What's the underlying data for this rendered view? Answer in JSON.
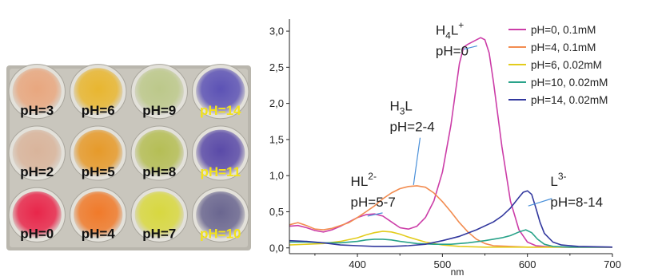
{
  "photo": {
    "cells": [
      {
        "label": "pH=3",
        "color": "#e8a77f",
        "label_color": "#111111"
      },
      {
        "label": "pH=6",
        "color": "#e8b630",
        "label_color": "#111111"
      },
      {
        "label": "pH=9",
        "color": "#bcc88a",
        "label_color": "#111111"
      },
      {
        "label": "pH=14",
        "color": "#5c52b5",
        "label_color": "#f2e21c"
      },
      {
        "label": "pH=2",
        "color": "#d9b49b",
        "label_color": "#111111"
      },
      {
        "label": "pH=5",
        "color": "#e69a2a",
        "label_color": "#111111"
      },
      {
        "label": "pH=8",
        "color": "#b5be55",
        "label_color": "#111111"
      },
      {
        "label": "pH=11",
        "color": "#5a4aa8",
        "label_color": "#f2e21c"
      },
      {
        "label": "pH=0",
        "color": "#e8264a",
        "label_color": "#111111"
      },
      {
        "label": "pH=4",
        "color": "#f07a2a",
        "label_color": "#111111"
      },
      {
        "label": "pH=7",
        "color": "#d8d840",
        "label_color": "#111111"
      },
      {
        "label": "pH=10",
        "color": "#6a6690",
        "label_color": "#f2e21c"
      }
    ]
  },
  "chart_data": {
    "type": "line",
    "xlabel": "nm",
    "ylabel": "",
    "xlim": [
      320,
      700
    ],
    "ylim": [
      -0.08,
      3.1
    ],
    "x_ticks": [
      400,
      500,
      600,
      700
    ],
    "y_ticks": [
      {
        "value": 0.0,
        "label": "0,0"
      },
      {
        "value": 0.5,
        "label": "0,5"
      },
      {
        "value": 1.0,
        "label": "1,0"
      },
      {
        "value": 1.5,
        "label": "1,5"
      },
      {
        "value": 2.0,
        "label": "2,0"
      },
      {
        "value": 2.5,
        "label": "2,5"
      },
      {
        "value": 3.0,
        "label": "3,0"
      }
    ],
    "legend_position": "top-right",
    "series": [
      {
        "name": "pH=0, 0.1mM",
        "color": "#cc3ea8",
        "points": [
          [
            320,
            0.3
          ],
          [
            330,
            0.31
          ],
          [
            340,
            0.28
          ],
          [
            350,
            0.24
          ],
          [
            360,
            0.22
          ],
          [
            370,
            0.25
          ],
          [
            380,
            0.3
          ],
          [
            390,
            0.36
          ],
          [
            400,
            0.42
          ],
          [
            410,
            0.46
          ],
          [
            420,
            0.47
          ],
          [
            430,
            0.44
          ],
          [
            440,
            0.36
          ],
          [
            450,
            0.28
          ],
          [
            460,
            0.26
          ],
          [
            470,
            0.3
          ],
          [
            480,
            0.42
          ],
          [
            490,
            0.65
          ],
          [
            500,
            1.05
          ],
          [
            510,
            1.7
          ],
          [
            520,
            2.55
          ],
          [
            525,
            2.78
          ],
          [
            530,
            2.82
          ],
          [
            540,
            2.88
          ],
          [
            545,
            2.91
          ],
          [
            550,
            2.88
          ],
          [
            555,
            2.7
          ],
          [
            560,
            2.3
          ],
          [
            570,
            1.4
          ],
          [
            580,
            0.65
          ],
          [
            590,
            0.25
          ],
          [
            600,
            0.08
          ],
          [
            610,
            0.03
          ],
          [
            620,
            0.02
          ],
          [
            640,
            0.01
          ],
          [
            660,
            0.01
          ],
          [
            700,
            0.01
          ]
        ]
      },
      {
        "name": "pH=4, 0.1mM",
        "color": "#f28c50",
        "points": [
          [
            320,
            0.32
          ],
          [
            330,
            0.35
          ],
          [
            340,
            0.31
          ],
          [
            350,
            0.26
          ],
          [
            360,
            0.25
          ],
          [
            370,
            0.27
          ],
          [
            380,
            0.31
          ],
          [
            390,
            0.35
          ],
          [
            400,
            0.42
          ],
          [
            410,
            0.5
          ],
          [
            420,
            0.58
          ],
          [
            430,
            0.68
          ],
          [
            440,
            0.76
          ],
          [
            450,
            0.82
          ],
          [
            460,
            0.85
          ],
          [
            470,
            0.86
          ],
          [
            480,
            0.84
          ],
          [
            490,
            0.76
          ],
          [
            500,
            0.64
          ],
          [
            510,
            0.5
          ],
          [
            520,
            0.35
          ],
          [
            530,
            0.22
          ],
          [
            540,
            0.12
          ],
          [
            550,
            0.06
          ],
          [
            560,
            0.03
          ],
          [
            580,
            0.02
          ],
          [
            600,
            0.01
          ],
          [
            700,
            0.01
          ]
        ]
      },
      {
        "name": "pH=6, 0.02mM",
        "color": "#e3cc1c",
        "points": [
          [
            320,
            0.04
          ],
          [
            340,
            0.05
          ],
          [
            360,
            0.06
          ],
          [
            380,
            0.09
          ],
          [
            400,
            0.14
          ],
          [
            410,
            0.18
          ],
          [
            420,
            0.21
          ],
          [
            430,
            0.23
          ],
          [
            440,
            0.22
          ],
          [
            450,
            0.19
          ],
          [
            460,
            0.15
          ],
          [
            480,
            0.08
          ],
          [
            500,
            0.04
          ],
          [
            520,
            0.02
          ],
          [
            550,
            0.01
          ],
          [
            600,
            0.01
          ],
          [
            700,
            0.01
          ]
        ]
      },
      {
        "name": "pH=10, 0.02mM",
        "color": "#2aa38a",
        "points": [
          [
            320,
            0.08
          ],
          [
            340,
            0.08
          ],
          [
            360,
            0.07
          ],
          [
            380,
            0.07
          ],
          [
            400,
            0.09
          ],
          [
            410,
            0.11
          ],
          [
            420,
            0.12
          ],
          [
            430,
            0.12
          ],
          [
            440,
            0.11
          ],
          [
            450,
            0.09
          ],
          [
            470,
            0.06
          ],
          [
            490,
            0.05
          ],
          [
            510,
            0.05
          ],
          [
            530,
            0.07
          ],
          [
            550,
            0.1
          ],
          [
            570,
            0.14
          ],
          [
            580,
            0.17
          ],
          [
            590,
            0.22
          ],
          [
            598,
            0.25
          ],
          [
            605,
            0.21
          ],
          [
            612,
            0.12
          ],
          [
            620,
            0.05
          ],
          [
            630,
            0.02
          ],
          [
            650,
            0.01
          ],
          [
            700,
            0.01
          ]
        ]
      },
      {
        "name": "pH=14, 0.02mM",
        "color": "#32389e",
        "points": [
          [
            320,
            0.1
          ],
          [
            340,
            0.09
          ],
          [
            360,
            0.07
          ],
          [
            380,
            0.04
          ],
          [
            400,
            0.03
          ],
          [
            420,
            0.02
          ],
          [
            440,
            0.02
          ],
          [
            460,
            0.03
          ],
          [
            480,
            0.05
          ],
          [
            500,
            0.1
          ],
          [
            520,
            0.16
          ],
          [
            540,
            0.25
          ],
          [
            560,
            0.36
          ],
          [
            570,
            0.44
          ],
          [
            580,
            0.55
          ],
          [
            590,
            0.7
          ],
          [
            595,
            0.77
          ],
          [
            600,
            0.79
          ],
          [
            605,
            0.74
          ],
          [
            610,
            0.55
          ],
          [
            615,
            0.35
          ],
          [
            620,
            0.2
          ],
          [
            630,
            0.08
          ],
          [
            640,
            0.04
          ],
          [
            660,
            0.02
          ],
          [
            700,
            0.01
          ]
        ]
      }
    ],
    "annotations": [
      {
        "base": "H",
        "sub": "4",
        "after": "L",
        "sup": "+",
        "ph": "pH=0",
        "label_x": 492,
        "label_y": 2.95,
        "point": [
          525,
          2.75
        ]
      },
      {
        "base": "H",
        "sub": "3",
        "after": "L",
        "sup": "",
        "ph": "pH=2-4",
        "label_x": 438,
        "label_y": 1.9,
        "point": [
          466,
          0.87
        ]
      },
      {
        "base": "HL",
        "sub": "",
        "after": "",
        "sup": "2-",
        "ph": "pH=5-7",
        "label_x": 392,
        "label_y": 0.86,
        "point": [
          412,
          0.44
        ]
      },
      {
        "base": "L",
        "sub": "",
        "after": "",
        "sup": "3-",
        "ph": "pH=8-14",
        "label_x": 627,
        "label_y": 0.86,
        "point": [
          601,
          0.58
        ]
      }
    ]
  }
}
